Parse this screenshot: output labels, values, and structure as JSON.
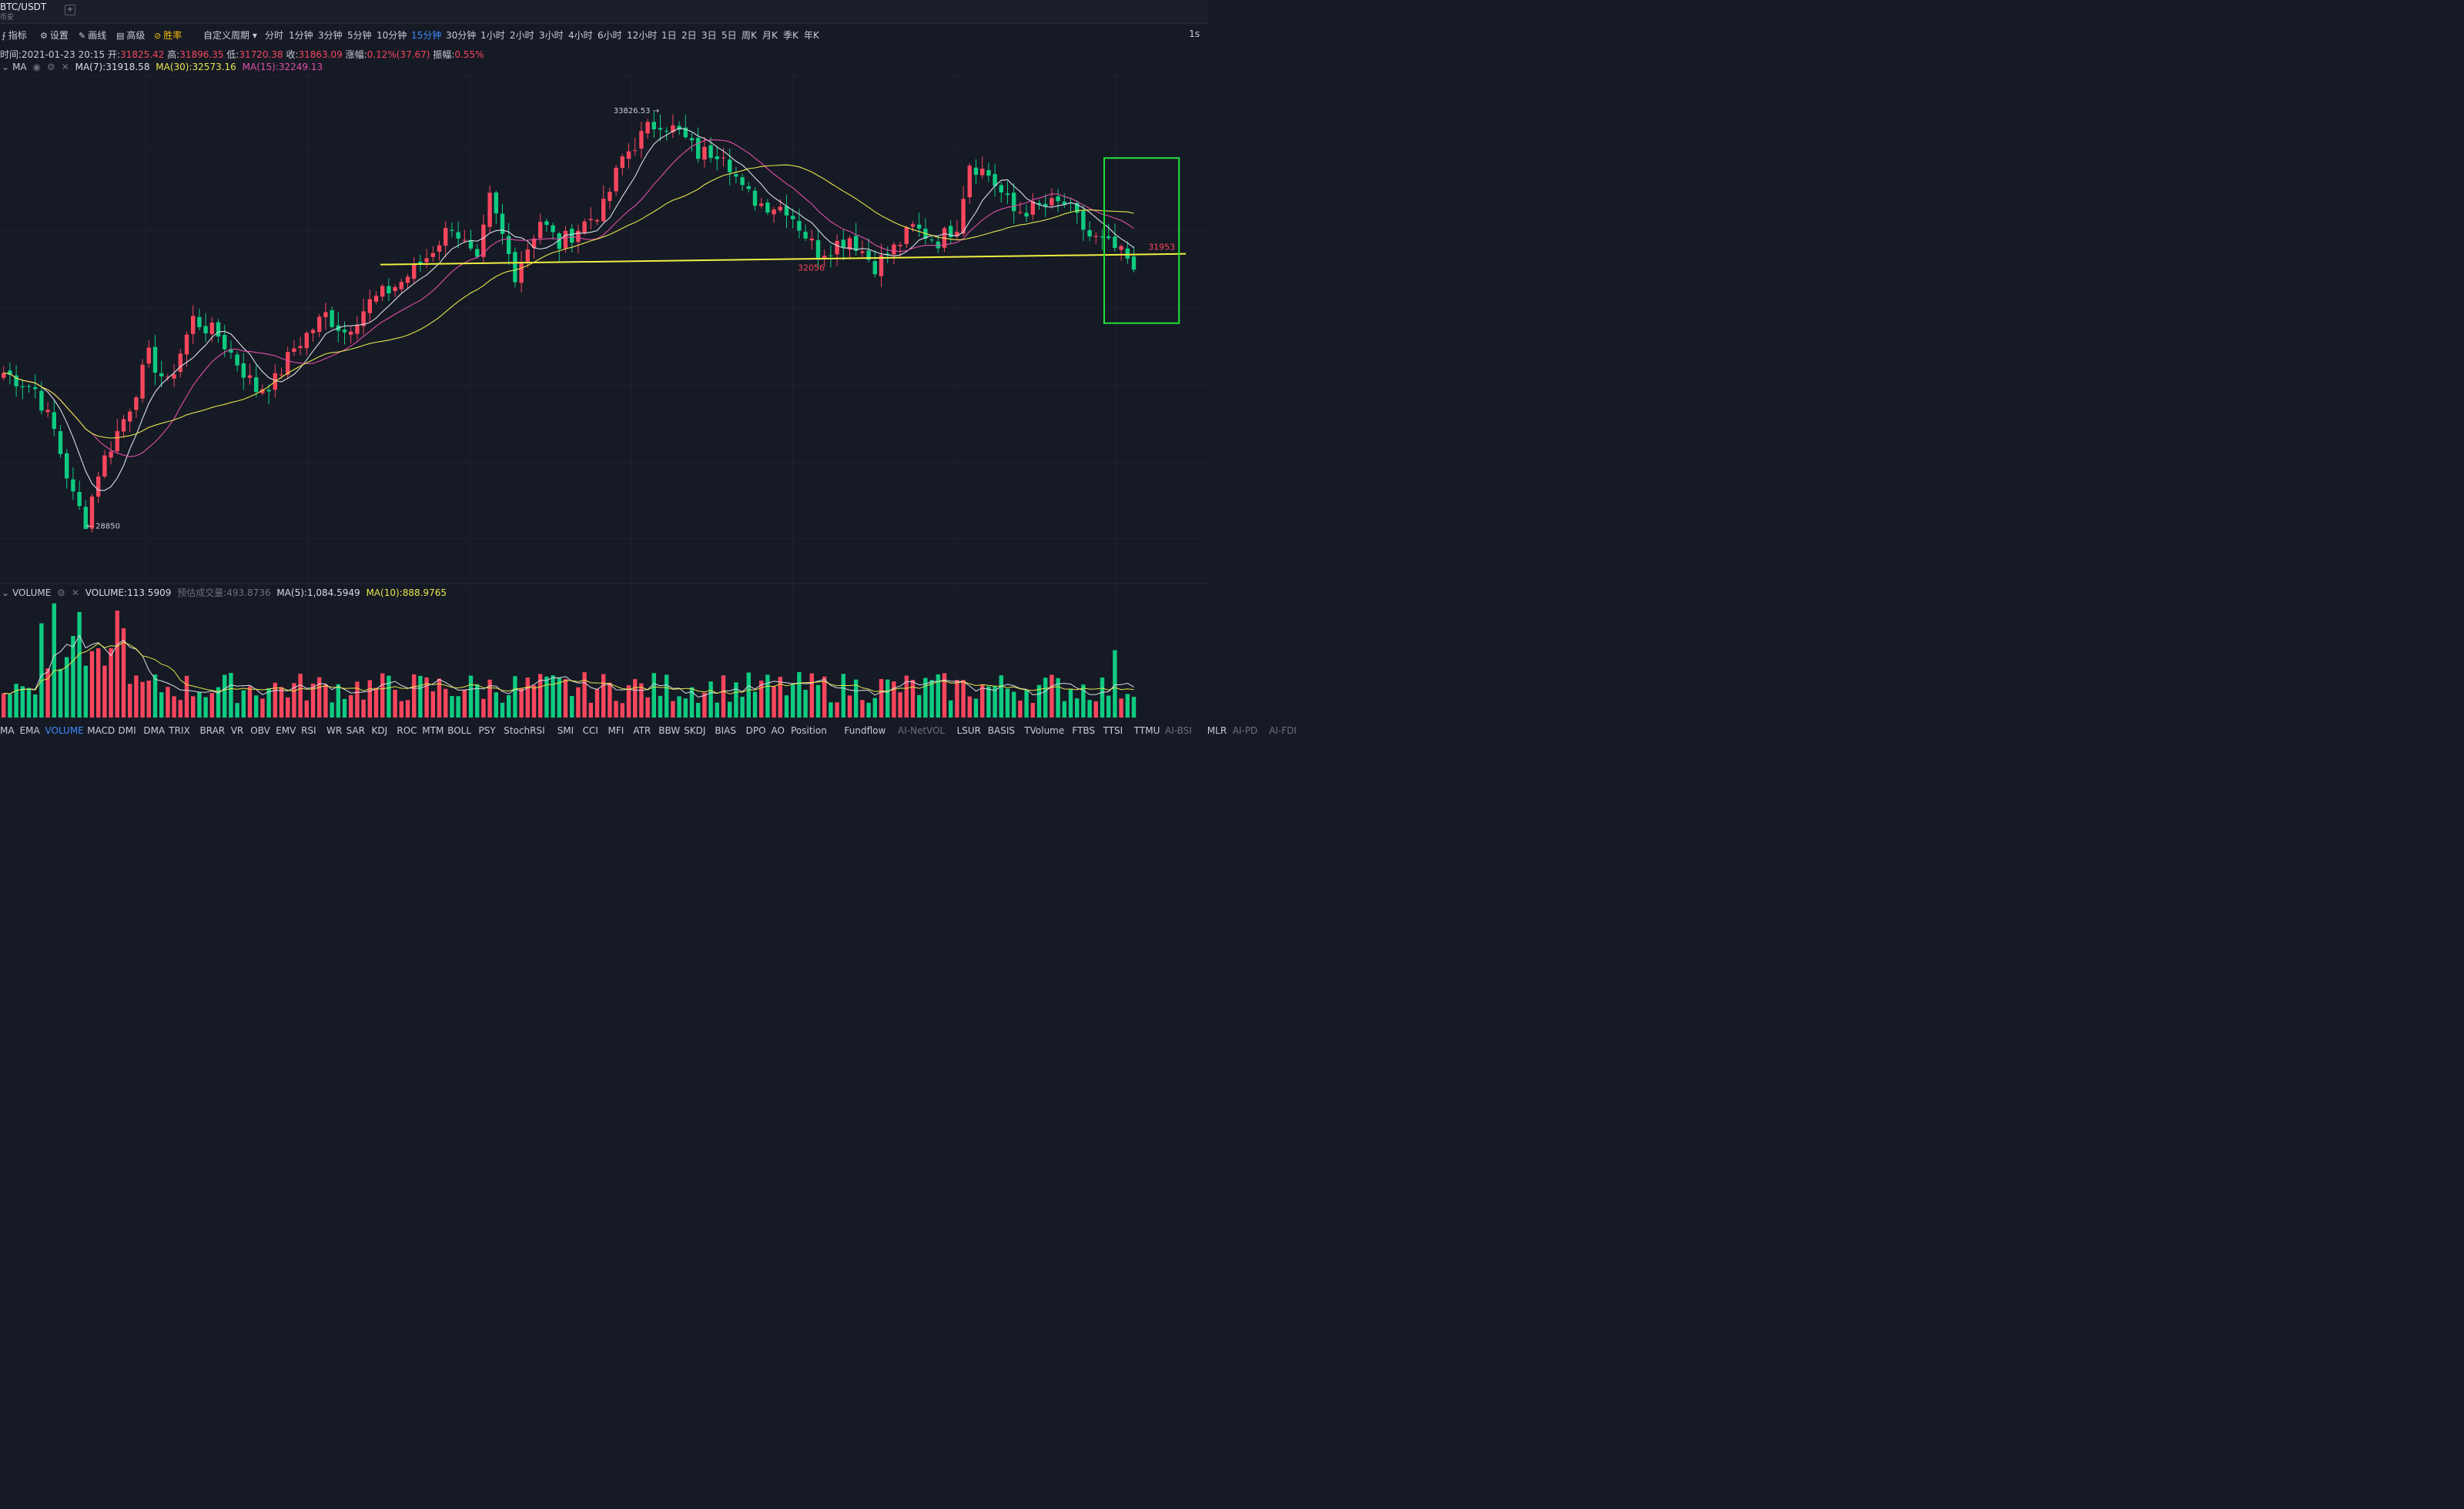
{
  "header": {
    "symbol": "BTC/USDT",
    "exchange": "币安",
    "add_tab": "+"
  },
  "toolbar": {
    "tools": [
      {
        "label": "指标",
        "icon": "indicator-icon"
      },
      {
        "label": "设置",
        "icon": "settings-icon"
      },
      {
        "label": "画线",
        "icon": "pen-icon"
      },
      {
        "label": "高级",
        "icon": "calendar-icon"
      },
      {
        "label": "胜率",
        "icon": "winrate-icon"
      }
    ],
    "periods": [
      "自定义周期",
      "分时",
      "1分钟",
      "3分钟",
      "5分钟",
      "10分钟",
      "15分钟",
      "30分钟",
      "1小时",
      "2小时",
      "3小时",
      "4小时",
      "6小时",
      "12小时",
      "1日",
      "2日",
      "3日",
      "5日",
      "周K",
      "月K",
      "季K",
      "年K"
    ],
    "active_period": "15分钟",
    "right_label": "1s"
  },
  "ohlc": {
    "time_label": "时间:",
    "time": "2021-01-23 20:15",
    "open_label": "开:",
    "open": "31825.42",
    "high_label": "高:",
    "high": "31896.35",
    "low_label": "低:",
    "low": "31720.38",
    "close_label": "收:",
    "close": "31863.09",
    "change_label": "涨幅:",
    "change": "0.12%(37.67)",
    "amp_label": "振幅:",
    "amp": "0.55%"
  },
  "ma_legend": {
    "name": "MA",
    "ma7": "MA(7):31918.58",
    "ma30": "MA(30):32573.16",
    "ma15": "MA(15):32249.13",
    "colors": {
      "ma7": "#d9dde6",
      "ma30": "#e6e64c",
      "ma15": "#e04fa8"
    }
  },
  "volume_legend": {
    "name": "VOLUME",
    "volume": "VOLUME:113.5909",
    "estimate": "预估成交量:493.8736",
    "ma5": "MA(5):1,084.5949",
    "ma10": "MA(10):888.9765"
  },
  "indicators": [
    "MA",
    "EMA",
    "VOLUME",
    "MACD",
    "DMI",
    "DMA",
    "TRIX",
    "BRAR",
    "VR",
    "OBV",
    "EMV",
    "RSI",
    "WR",
    "SAR",
    "KDJ",
    "ROC",
    "MTM",
    "BOLL",
    "PSY",
    "StochRSI",
    "SMI",
    "CCI",
    "MFI",
    "ATR",
    "BBW",
    "SKDJ",
    "BIAS",
    "DPO",
    "AO",
    "Position",
    "Fundflow",
    "AI-NetVOL",
    "LSUR",
    "BASIS",
    "TVolume",
    "FTBS",
    "TTSI",
    "TTMU",
    "AI-BSI",
    "MLR",
    "AI-PD",
    "AI-FDI"
  ],
  "active_indicator": "VOLUME",
  "ai_indicators": [
    "AI-NetVOL",
    "AI-BSI",
    "AI-PD",
    "AI-FDI"
  ],
  "chart_data": {
    "type": "candlestick",
    "symbol": "BTC/USDT",
    "interval": "15分钟",
    "candle_count": 180,
    "y_range": [
      28500,
      34300
    ],
    "price_range": [
      28850,
      33826.53
    ],
    "max_label": "33826.53",
    "min_label": "28850",
    "support_label": "32056",
    "box_label": "31953",
    "support_level": 32056,
    "up_color": "#f6465d",
    "down_color": "#0ecb81",
    "anchors": [
      [
        0,
        30700
      ],
      [
        5,
        30500
      ],
      [
        8,
        30000
      ],
      [
        11,
        29200
      ],
      [
        13,
        28900
      ],
      [
        15,
        29500
      ],
      [
        20,
        30300
      ],
      [
        23,
        30900
      ],
      [
        26,
        30550
      ],
      [
        30,
        31350
      ],
      [
        34,
        31150
      ],
      [
        40,
        30500
      ],
      [
        43,
        30600
      ],
      [
        46,
        31000
      ],
      [
        51,
        31400
      ],
      [
        54,
        31200
      ],
      [
        58,
        31550
      ],
      [
        63,
        31800
      ],
      [
        67,
        32100
      ],
      [
        71,
        32500
      ],
      [
        75,
        32000
      ],
      [
        77,
        32800
      ],
      [
        81,
        31900
      ],
      [
        85,
        32550
      ],
      [
        88,
        32250
      ],
      [
        91,
        32450
      ],
      [
        95,
        32700
      ],
      [
        98,
        33300
      ],
      [
        102,
        33650
      ],
      [
        104,
        33750
      ],
      [
        107,
        33600
      ],
      [
        110,
        33350
      ],
      [
        114,
        33400
      ],
      [
        117,
        32900
      ],
      [
        120,
        32750
      ],
      [
        124,
        32700
      ],
      [
        129,
        32150
      ],
      [
        134,
        32350
      ],
      [
        138,
        32000
      ],
      [
        141,
        32200
      ],
      [
        144,
        32450
      ],
      [
        148,
        32300
      ],
      [
        151,
        32500
      ],
      [
        153,
        33250
      ],
      [
        156,
        33100
      ],
      [
        160,
        32650
      ],
      [
        164,
        32700
      ],
      [
        168,
        32750
      ],
      [
        172,
        32350
      ],
      [
        176,
        32200
      ],
      [
        178,
        32050
      ],
      [
        180,
        31700
      ],
      [
        183,
        31650
      ],
      [
        187,
        31850
      ]
    ]
  }
}
